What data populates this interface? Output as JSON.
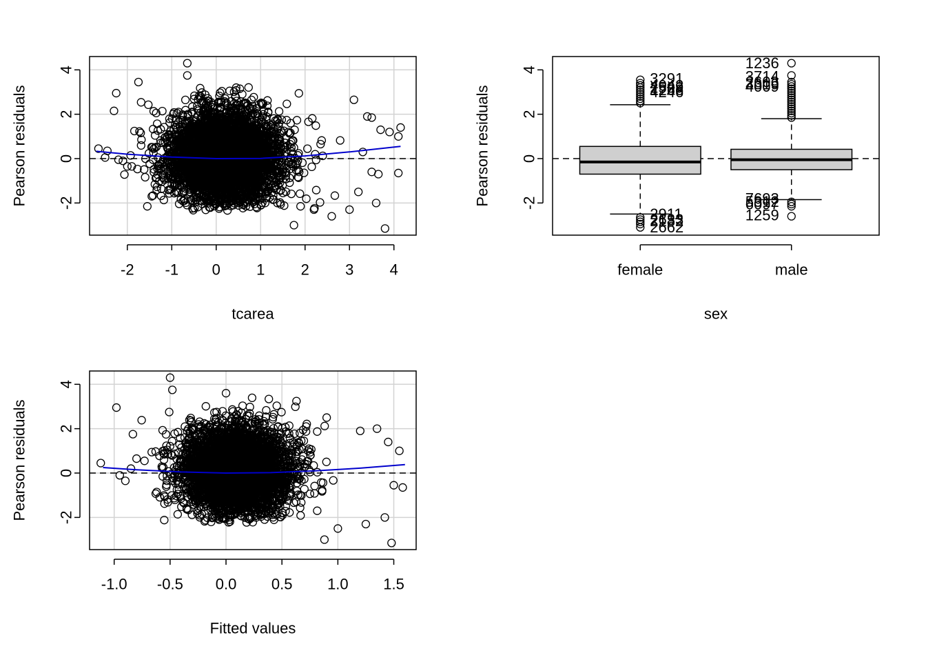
{
  "chart_data": [
    {
      "id": "p1",
      "type": "scatter",
      "xlabel": "tcarea",
      "ylabel": "Pearson residuals",
      "xlim": [
        -2.85,
        4.5
      ],
      "ylim": [
        -3.45,
        4.6
      ],
      "xticks": [
        -2,
        -1,
        0,
        1,
        2,
        3,
        4
      ],
      "yticks": [
        -2,
        0,
        2,
        4
      ],
      "grid": true,
      "reference_line_y": 0,
      "smooth_curve": {
        "color": "#0000cc",
        "x": [
          -2.7,
          -2,
          -1,
          0,
          1,
          2,
          3,
          4.15
        ],
        "y": [
          0.33,
          0.2,
          0.07,
          0.0,
          0.01,
          0.12,
          0.3,
          0.55
        ]
      },
      "cloud": {
        "x_center": 0.2,
        "x_spread": 1.15,
        "y_center": 0.1,
        "y_spread": 1.0,
        "count": 4200
      },
      "sparse_points": [
        {
          "x": -2.65,
          "y": 0.45
        },
        {
          "x": -2.45,
          "y": 0.35
        },
        {
          "x": -2.5,
          "y": 0.05
        },
        {
          "x": -2.25,
          "y": 2.95
        },
        {
          "x": -2.3,
          "y": 2.15
        },
        {
          "x": -2.2,
          "y": -0.05
        },
        {
          "x": -2.1,
          "y": -0.1
        },
        {
          "x": -2.0,
          "y": -0.35
        },
        {
          "x": -1.9,
          "y": -0.35
        },
        {
          "x": -1.75,
          "y": 3.45
        },
        {
          "x": -1.55,
          "y": -2.15
        },
        {
          "x": -1.45,
          "y": -1.7
        },
        {
          "x": -0.65,
          "y": 4.3
        },
        {
          "x": -0.65,
          "y": 3.75
        },
        {
          "x": 0.45,
          "y": 3.2
        },
        {
          "x": 1.75,
          "y": -3.0
        },
        {
          "x": 3.1,
          "y": 2.65
        },
        {
          "x": 3.0,
          "y": -2.3
        },
        {
          "x": 3.5,
          "y": 1.85
        },
        {
          "x": 3.7,
          "y": 1.3
        },
        {
          "x": 3.6,
          "y": -2.0
        },
        {
          "x": 3.8,
          "y": -3.15
        },
        {
          "x": 3.9,
          "y": 1.2
        },
        {
          "x": 4.15,
          "y": 1.4
        },
        {
          "x": 4.1,
          "y": 1.0
        },
        {
          "x": 4.1,
          "y": -0.65
        },
        {
          "x": 3.5,
          "y": -0.6
        },
        {
          "x": 3.65,
          "y": -0.7
        },
        {
          "x": 3.3,
          "y": 0.3
        },
        {
          "x": 3.4,
          "y": 1.9
        },
        {
          "x": 2.6,
          "y": -2.6
        },
        {
          "x": 2.2,
          "y": -2.3
        },
        {
          "x": 3.2,
          "y": -1.5
        }
      ]
    },
    {
      "id": "p2",
      "type": "box",
      "xlabel": "sex",
      "ylabel": "Pearson residuals",
      "categories": [
        "female",
        "male"
      ],
      "ylim": [
        -3.45,
        4.6
      ],
      "yticks": [
        -2,
        0,
        2,
        4
      ],
      "reference_line_y": 0,
      "boxes": [
        {
          "name": "female",
          "q1": -0.7,
          "median": -0.15,
          "q3": 0.55,
          "whisker_low": -2.5,
          "whisker_high": 2.43,
          "outliers_y": [
            2.5,
            2.6,
            2.7,
            2.8,
            2.9,
            3.0,
            3.1,
            3.2,
            3.3,
            3.4,
            3.55,
            -2.65,
            -2.75,
            -2.85,
            -2.95,
            -3.1
          ],
          "labels": [
            {
              "text": "3291",
              "y": 3.6
            },
            {
              "text": "4042",
              "y": 3.3
            },
            {
              "text": "2599",
              "y": 3.2
            },
            {
              "text": "1266",
              "y": 3.1
            },
            {
              "text": "4246",
              "y": 3.0
            },
            {
              "text": "2911",
              "y": -2.5
            },
            {
              "text": "2633",
              "y": -2.75
            },
            {
              "text": "2182",
              "y": -2.82
            },
            {
              "text": "2662",
              "y": -3.1
            }
          ]
        },
        {
          "name": "male",
          "q1": -0.5,
          "median": -0.05,
          "q3": 0.42,
          "whisker_low": -1.85,
          "whisker_high": 1.8,
          "outliers_y": [
            1.85,
            1.95,
            2.05,
            2.15,
            2.25,
            2.35,
            2.45,
            2.55,
            2.65,
            2.75,
            2.85,
            2.95,
            3.05,
            3.15,
            3.25,
            3.35,
            3.45,
            3.75,
            4.3,
            -1.95,
            -2.05,
            -2.15,
            -2.6
          ],
          "labels": [
            {
              "text": "1236",
              "y": 4.3
            },
            {
              "text": "3714",
              "y": 3.7
            },
            {
              "text": "2603",
              "y": 3.45
            },
            {
              "text": "3319",
              "y": 3.35
            },
            {
              "text": "4009",
              "y": 3.25
            },
            {
              "text": "7693",
              "y": -1.8
            },
            {
              "text": "5312",
              "y": -1.95
            },
            {
              "text": "6097",
              "y": -2.05
            },
            {
              "text": "1259",
              "y": -2.55
            }
          ]
        }
      ]
    },
    {
      "id": "p3",
      "type": "scatter",
      "xlabel": "Fitted values",
      "ylabel": "Pearson residuals",
      "xlim": [
        -1.22,
        1.7
      ],
      "ylim": [
        -3.45,
        4.6
      ],
      "xticks": [
        -1.0,
        -0.5,
        0.0,
        0.5,
        1.0,
        1.5
      ],
      "xtick_labels": [
        "-1.0",
        "-0.5",
        "0.0",
        "0.5",
        "1.0",
        "1.5"
      ],
      "yticks": [
        -2,
        0,
        2,
        4
      ],
      "grid": true,
      "reference_line_y": 0,
      "smooth_curve": {
        "color": "#0000cc",
        "x": [
          -1.1,
          -0.8,
          -0.4,
          0.0,
          0.4,
          0.8,
          1.2,
          1.6
        ],
        "y": [
          0.25,
          0.15,
          0.05,
          0.0,
          0.02,
          0.1,
          0.22,
          0.38
        ]
      },
      "cloud": {
        "x_center": 0.1,
        "x_spread": 0.45,
        "y_center": 0.15,
        "y_spread": 0.95,
        "count": 4200
      },
      "sparse_points": [
        {
          "x": -1.12,
          "y": 0.45
        },
        {
          "x": -0.98,
          "y": 2.95
        },
        {
          "x": -0.95,
          "y": -0.1
        },
        {
          "x": -0.9,
          "y": -0.35
        },
        {
          "x": -0.85,
          "y": 0.2
        },
        {
          "x": -0.8,
          "y": 0.65
        },
        {
          "x": -0.5,
          "y": 4.3
        },
        {
          "x": -0.48,
          "y": 3.75
        },
        {
          "x": 0.0,
          "y": 3.6
        },
        {
          "x": 0.88,
          "y": -3.0
        },
        {
          "x": 1.48,
          "y": -3.15
        },
        {
          "x": 1.42,
          "y": -2.0
        },
        {
          "x": 1.55,
          "y": 1.0
        },
        {
          "x": 1.58,
          "y": -0.65
        },
        {
          "x": 1.45,
          "y": 1.4
        },
        {
          "x": 1.35,
          "y": 2.0
        },
        {
          "x": 1.25,
          "y": -2.3
        },
        {
          "x": 1.0,
          "y": -2.5
        },
        {
          "x": 1.2,
          "y": 1.9
        },
        {
          "x": 1.5,
          "y": -0.55
        },
        {
          "x": 0.9,
          "y": 2.5
        }
      ]
    }
  ]
}
